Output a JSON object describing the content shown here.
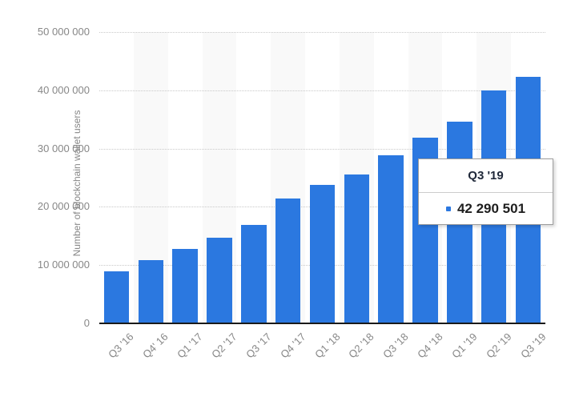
{
  "chart_data": {
    "type": "bar",
    "title": "",
    "xlabel": "",
    "ylabel": "Number of blockchain wallet users",
    "categories": [
      "Q3 '16",
      "Q4' 16",
      "Q1 '17",
      "Q2 '17",
      "Q3 '17",
      "Q4 '17",
      "Q1 '18",
      "Q2 '18",
      "Q3 '18",
      "Q4 '18",
      "Q1 '19",
      "Q2 '19",
      "Q3 '19"
    ],
    "values": [
      8900000,
      10900000,
      12800000,
      14700000,
      16900000,
      21400000,
      23700000,
      25600000,
      28900000,
      31900000,
      34600000,
      40000000,
      42290501
    ],
    "ylim": [
      0,
      50000000
    ],
    "yticks": [
      0,
      10000000,
      20000000,
      30000000,
      40000000,
      50000000
    ],
    "ytick_labels": [
      "0",
      "10 000 000",
      "20 000 000",
      "30 000 000",
      "40 000 000",
      "50 000 000"
    ],
    "grid": "horizontal-dotted",
    "legend": "none",
    "colors": {
      "bar": "#2b78e0",
      "column_band": "#f9f9f9",
      "gridline": "#c9c9c9",
      "axis_line": "#1a1a1a",
      "tick_label": "#878787",
      "axis_title": "#878787"
    },
    "tooltip": {
      "title": "Q3 '19",
      "value": 42290501,
      "value_label": "42 290 501",
      "marker_color": "#2b78e0"
    }
  }
}
